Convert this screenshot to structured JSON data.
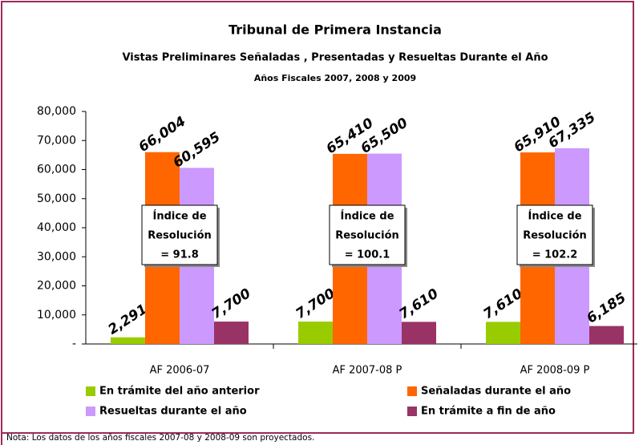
{
  "chart_data": {
    "type": "bar",
    "title": "Tribunal de Primera Instancia",
    "subtitle": "Vistas Preliminares Señaladas , Presentadas y Resueltas Durante el Año",
    "subtitle2": "Años Fiscales 2007, 2008 y 2009",
    "categories": [
      "AF 2006-07",
      "AF 2007-08 P",
      "AF 2008-09 P"
    ],
    "series": [
      {
        "name": "En trámite del año anterior",
        "color": "#99cc00",
        "values": [
          2291,
          7700,
          7610
        ],
        "value_labels": [
          "2,291",
          "7,700",
          "7,610"
        ]
      },
      {
        "name": "Señaladas durante el año",
        "color": "#ff6600",
        "values": [
          66004,
          65410,
          65910
        ],
        "value_labels": [
          "66,004",
          "65,410",
          "65,910"
        ]
      },
      {
        "name": "Resueltas durante el año",
        "color": "#cc99ff",
        "values": [
          60595,
          65500,
          67335
        ],
        "value_labels": [
          "60,595",
          "65,500",
          "67,335"
        ]
      },
      {
        "name": "En trámite a fin de año",
        "color": "#993366",
        "values": [
          7700,
          7610,
          6185
        ],
        "value_labels": [
          "7,700",
          "7,610",
          "6,185"
        ]
      }
    ],
    "ylim": [
      0,
      80000
    ],
    "yticks": [
      {
        "value": 0,
        "label": "-"
      },
      {
        "value": 10000,
        "label": "10,000"
      },
      {
        "value": 20000,
        "label": "20,000"
      },
      {
        "value": 30000,
        "label": "30,000"
      },
      {
        "value": 40000,
        "label": "40,000"
      },
      {
        "value": 50000,
        "label": "50,000"
      },
      {
        "value": 60000,
        "label": "60,000"
      },
      {
        "value": 70000,
        "label": "70,000"
      },
      {
        "value": 80000,
        "label": "80,000"
      }
    ],
    "annotations": [
      [
        "Índice de",
        "Resolución",
        "= 91.8"
      ],
      [
        "Índice de",
        "Resolución",
        "= 100.1"
      ],
      [
        "Índice de",
        "Resolución",
        "= 102.2"
      ]
    ],
    "legend": "bottom",
    "grid": false,
    "note": "Nota: Los datos de los años fiscales 2007-08 y 2008-09 son proyectados."
  }
}
